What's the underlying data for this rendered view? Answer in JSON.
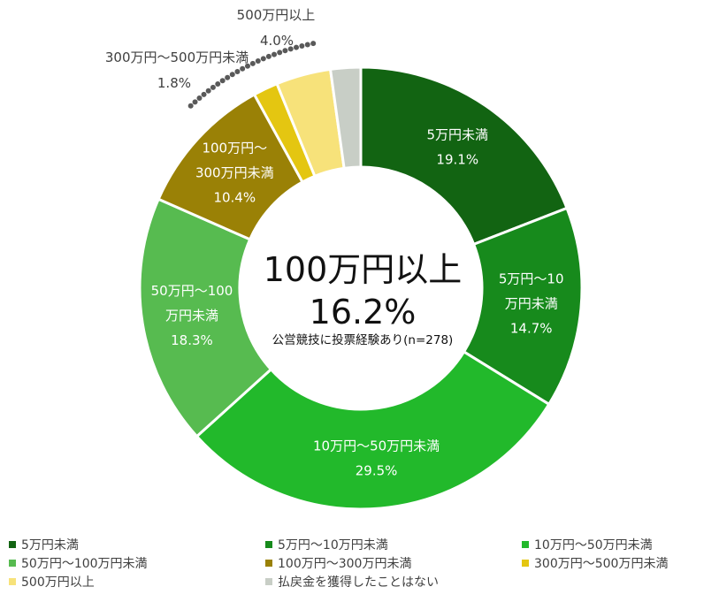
{
  "chart_data": {
    "type": "pie",
    "subtype": "donut",
    "center_text": {
      "main_label": "100万円以上",
      "main_value": "16.2%",
      "caption": "公営競技に投票経験あり(n=278)"
    },
    "slices": [
      {
        "label": "5万円未満",
        "value": 19.1,
        "display_value": "19.1%",
        "inner_label_lines": [
          "5万円未満"
        ],
        "color": "#126412"
      },
      {
        "label": "5万円〜10万円未満",
        "value": 14.7,
        "display_value": "14.7%",
        "inner_label_lines": [
          "5万円〜10",
          "万円未満"
        ],
        "color": "#178a1c"
      },
      {
        "label": "10万円〜50万円未満",
        "value": 29.5,
        "display_value": "29.5%",
        "inner_label_lines": [
          "10万円〜50万円未満"
        ],
        "color": "#22b92b"
      },
      {
        "label": "50万円〜100万円未満",
        "value": 18.3,
        "display_value": "18.3%",
        "inner_label_lines": [
          "50万円〜100",
          "万円未満"
        ],
        "color": "#57bb50"
      },
      {
        "label": "100万円〜300万円未満",
        "value": 10.4,
        "display_value": "10.4%",
        "inner_label_lines": [
          "100万円〜",
          "300万円未満"
        ],
        "color": "#9a8106"
      },
      {
        "label": "300万円〜500万円未満",
        "value": 1.8,
        "display_value": "1.8%",
        "outer_label": "300万円〜500万円未満",
        "color": "#e4c611"
      },
      {
        "label": "500万円以上",
        "value": 4.0,
        "display_value": "4.0%",
        "outer_label": "500万円以上",
        "color": "#f7e27a"
      },
      {
        "label": "払戻金を獲得したことはない",
        "value": 2.2,
        "color": "#c8cec6"
      }
    ],
    "legend": {
      "placement": "bottom",
      "items": [
        {
          "label": "5万円未満",
          "color": "#126412"
        },
        {
          "label": "5万円〜10万円未満",
          "color": "#178a1c"
        },
        {
          "label": "10万円〜50万円未満",
          "color": "#22b92b"
        },
        {
          "label": "50万円〜100万円未満",
          "color": "#57bb50"
        },
        {
          "label": "100万円〜300万円未満",
          "color": "#9a8106"
        },
        {
          "label": "300万円〜500万円未満",
          "color": "#e4c611"
        },
        {
          "label": "500万円以上",
          "color": "#f7e27a"
        },
        {
          "label": "払戻金を獲得したことはない",
          "color": "#c8cec6"
        }
      ]
    }
  }
}
